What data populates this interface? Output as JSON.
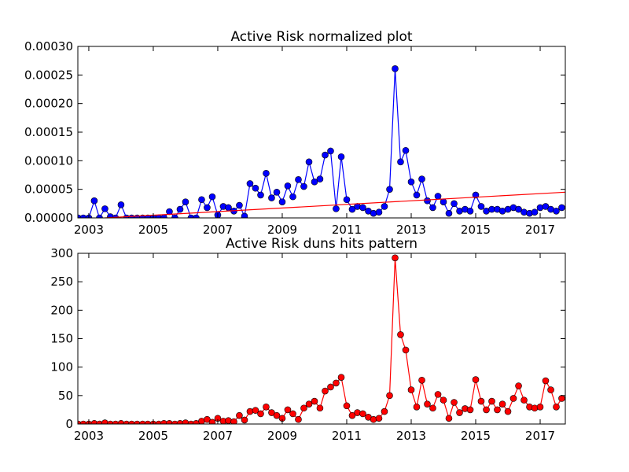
{
  "chart_data": [
    {
      "type": "line",
      "title": "Active Risk normalized plot",
      "x": [
        2002.67,
        2002.83,
        2003.0,
        2003.17,
        2003.33,
        2003.5,
        2003.67,
        2003.83,
        2004.0,
        2004.17,
        2004.33,
        2004.5,
        2004.67,
        2004.83,
        2005.0,
        2005.17,
        2005.33,
        2005.5,
        2005.67,
        2005.83,
        2006.0,
        2006.17,
        2006.33,
        2006.5,
        2006.67,
        2006.83,
        2007.0,
        2007.17,
        2007.33,
        2007.5,
        2007.67,
        2007.83,
        2008.0,
        2008.17,
        2008.33,
        2008.5,
        2008.67,
        2008.83,
        2009.0,
        2009.17,
        2009.33,
        2009.5,
        2009.67,
        2009.83,
        2010.0,
        2010.17,
        2010.33,
        2010.5,
        2010.67,
        2010.83,
        2011.0,
        2011.17,
        2011.33,
        2011.5,
        2011.67,
        2011.83,
        2012.0,
        2012.17,
        2012.33,
        2012.5,
        2012.67,
        2012.83,
        2013.0,
        2013.17,
        2013.33,
        2013.5,
        2013.67,
        2013.83,
        2014.0,
        2014.17,
        2014.33,
        2014.5,
        2014.67,
        2014.83,
        2015.0,
        2015.17,
        2015.33,
        2015.5,
        2015.67,
        2015.83,
        2016.0,
        2016.17,
        2016.33,
        2016.5,
        2016.67,
        2016.83,
        2017.0,
        2017.17,
        2017.33,
        2017.5,
        2017.67
      ],
      "series": [
        {
          "color": "#0000ff",
          "marker": true,
          "marker_edge_color": "#000000",
          "values": [
            0,
            0,
            0,
            3e-05,
            0,
            1.6e-05,
            2e-06,
            0,
            2.3e-05,
            0,
            0,
            0,
            0,
            0,
            0,
            0,
            0,
            1.1e-05,
            0,
            1.5e-05,
            2.8e-05,
            0,
            0,
            3.2e-05,
            1.8e-05,
            3.7e-05,
            5e-06,
            2e-05,
            1.8e-05,
            1.2e-05,
            2.2e-05,
            3e-06,
            6e-05,
            5.2e-05,
            4e-05,
            7.8e-05,
            3.5e-05,
            4.5e-05,
            2.8e-05,
            5.6e-05,
            3.7e-05,
            6.7e-05,
            5.5e-05,
            9.8e-05,
            6.3e-05,
            6.8e-05,
            0.00011,
            0.000117,
            1.6e-05,
            0.000107,
            3.2e-05,
            1.5e-05,
            2e-05,
            1.8e-05,
            1.2e-05,
            8e-06,
            1e-05,
            2e-05,
            5e-05,
            0.000261,
            9.8e-05,
            0.000118,
            6.3e-05,
            4e-05,
            6.8e-05,
            3e-05,
            1.8e-05,
            3.8e-05,
            2.8e-05,
            8e-06,
            2.5e-05,
            1.2e-05,
            1.5e-05,
            1.2e-05,
            4e-05,
            2e-05,
            1.2e-05,
            1.5e-05,
            1.5e-05,
            1.2e-05,
            1.5e-05,
            1.8e-05,
            1.5e-05,
            1e-05,
            8e-06,
            1e-05,
            1.8e-05,
            2e-05,
            1.5e-05,
            1.2e-05,
            1.8e-05
          ]
        },
        {
          "color": "#ff0000",
          "marker": false,
          "x": [
            2003.5,
            2017.78
          ],
          "values": [
            0,
            4.5e-05
          ]
        }
      ],
      "xlim": [
        2002.66,
        2017.78
      ],
      "xticks": [
        2003,
        2005,
        2007,
        2009,
        2011,
        2013,
        2015,
        2017
      ],
      "ylim": [
        0,
        0.0003
      ],
      "yticks": [
        {
          "value": 0,
          "label": "0.00000"
        },
        {
          "value": 5e-05,
          "label": "0.00005"
        },
        {
          "value": 0.0001,
          "label": "0.00010"
        },
        {
          "value": 0.00015,
          "label": "0.00015"
        },
        {
          "value": 0.0002,
          "label": "0.00020"
        },
        {
          "value": 0.00025,
          "label": "0.00025"
        },
        {
          "value": 0.0003,
          "label": "0.00030"
        }
      ]
    },
    {
      "type": "line",
      "title": "Active Risk duns hits pattern",
      "x": [
        2002.67,
        2002.83,
        2003.0,
        2003.17,
        2003.33,
        2003.5,
        2003.67,
        2003.83,
        2004.0,
        2004.17,
        2004.33,
        2004.5,
        2004.67,
        2004.83,
        2005.0,
        2005.17,
        2005.33,
        2005.5,
        2005.67,
        2005.83,
        2006.0,
        2006.17,
        2006.33,
        2006.5,
        2006.67,
        2006.83,
        2007.0,
        2007.17,
        2007.33,
        2007.5,
        2007.67,
        2007.83,
        2008.0,
        2008.17,
        2008.33,
        2008.5,
        2008.67,
        2008.83,
        2009.0,
        2009.17,
        2009.33,
        2009.5,
        2009.67,
        2009.83,
        2010.0,
        2010.17,
        2010.33,
        2010.5,
        2010.67,
        2010.83,
        2011.0,
        2011.17,
        2011.33,
        2011.5,
        2011.67,
        2011.83,
        2012.0,
        2012.17,
        2012.33,
        2012.5,
        2012.67,
        2012.83,
        2013.0,
        2013.17,
        2013.33,
        2013.5,
        2013.67,
        2013.83,
        2014.0,
        2014.17,
        2014.33,
        2014.5,
        2014.67,
        2014.83,
        2015.0,
        2015.17,
        2015.33,
        2015.5,
        2015.67,
        2015.83,
        2016.0,
        2016.17,
        2016.33,
        2016.5,
        2016.67,
        2016.83,
        2017.0,
        2017.17,
        2017.33,
        2017.5,
        2017.67
      ],
      "series": [
        {
          "color": "#ff0000",
          "marker": true,
          "marker_edge_color": "#000000",
          "values": [
            0,
            0,
            0,
            1,
            0,
            2,
            0,
            0,
            1,
            0,
            0,
            0,
            0,
            0,
            0,
            0,
            1,
            1,
            0,
            1,
            2,
            0,
            1,
            5,
            8,
            3,
            10,
            5,
            6,
            4,
            15,
            7,
            22,
            24,
            18,
            30,
            20,
            15,
            10,
            25,
            18,
            8,
            28,
            35,
            40,
            28,
            58,
            65,
            72,
            82,
            32,
            15,
            20,
            18,
            12,
            8,
            10,
            22,
            50,
            292,
            157,
            130,
            60,
            30,
            77,
            35,
            28,
            52,
            42,
            10,
            38,
            20,
            27,
            25,
            78,
            40,
            25,
            40,
            25,
            35,
            22,
            45,
            67,
            42,
            30,
            28,
            30,
            76,
            60,
            30,
            45
          ]
        }
      ],
      "xlim": [
        2002.66,
        2017.78
      ],
      "xticks": [
        2003,
        2005,
        2007,
        2009,
        2011,
        2013,
        2015,
        2017
      ],
      "ylim": [
        0,
        300
      ],
      "yticks": [
        0,
        50,
        100,
        150,
        200,
        250,
        300
      ]
    }
  ]
}
